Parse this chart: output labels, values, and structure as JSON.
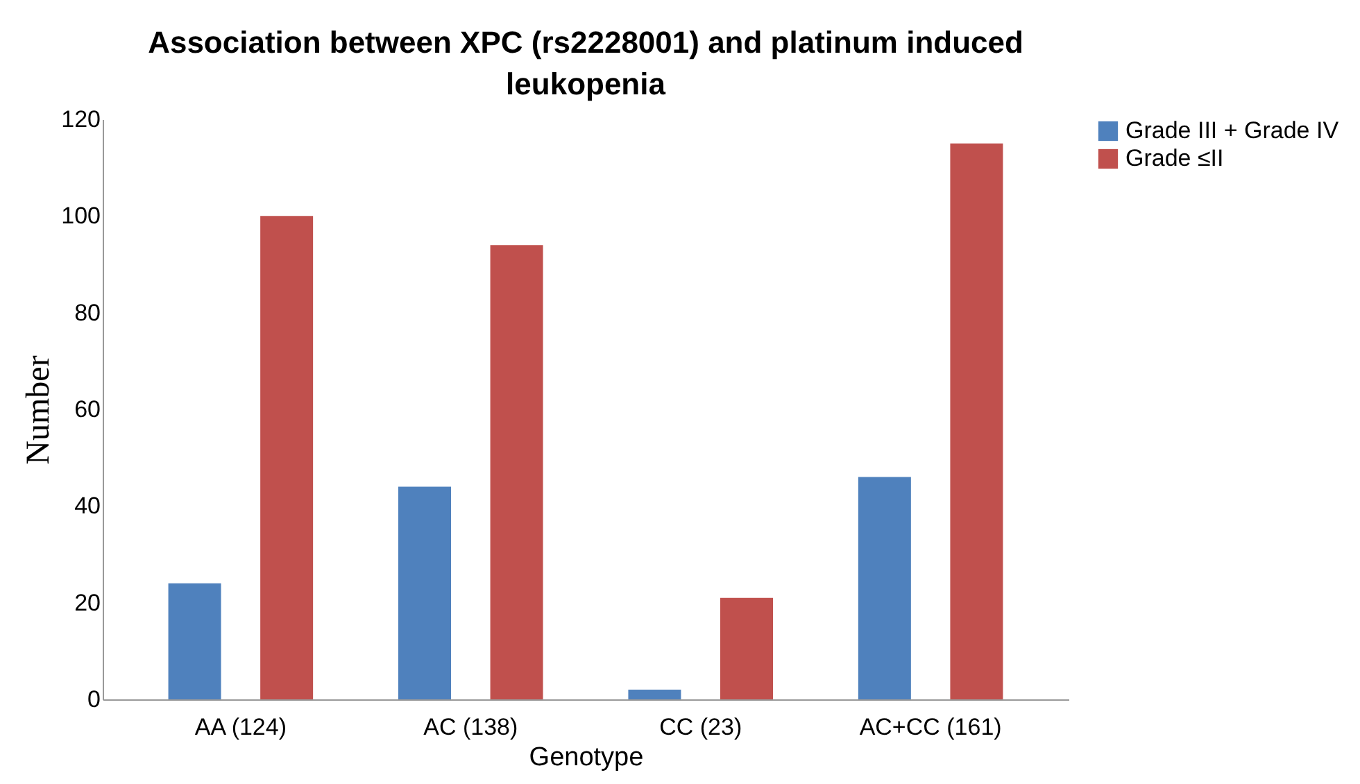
{
  "chart_data": {
    "type": "bar",
    "title": "Association between  XPC (rs2228001) and platinum induced leukopenia",
    "xlabel": "Genotype",
    "ylabel": "Number",
    "categories": [
      "AA (124)",
      "AC  (138)",
      "CC  (23)",
      "AC+CC (161)"
    ],
    "series": [
      {
        "name": "Grade III + Grade IV",
        "color": "#4f81bd",
        "values": [
          24,
          44,
          2,
          46
        ]
      },
      {
        "name": "Grade ≤II",
        "color": "#c0504d",
        "values": [
          100,
          94,
          21,
          115
        ]
      }
    ],
    "ylim": [
      0,
      120
    ],
    "yticks": [
      0,
      20,
      40,
      60,
      80,
      100,
      120
    ],
    "grid": false,
    "legend": "right"
  }
}
